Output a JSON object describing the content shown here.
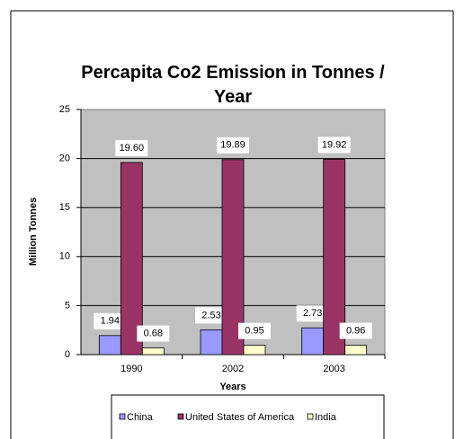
{
  "chart_data": {
    "type": "bar",
    "title": "Percapita Co2 Emission in Tonnes / Year",
    "x_label": "Years",
    "y_label": "Million Tonnes",
    "categories": [
      "1990",
      "2002",
      "2003"
    ],
    "series": [
      {
        "name": "China",
        "color": "#9999ff",
        "values": [
          1.94,
          2.53,
          2.73
        ],
        "value_labels": [
          "1.94",
          "2.53",
          "2.73"
        ]
      },
      {
        "name": "United States of America",
        "color": "#993366",
        "values": [
          19.6,
          19.89,
          19.92
        ],
        "value_labels": [
          "19.60",
          "19.89",
          "19.92"
        ]
      },
      {
        "name": "India",
        "color": "#ffffcc",
        "values": [
          0.68,
          0.95,
          0.96
        ],
        "value_labels": [
          "0.68",
          "0.95",
          "0.96"
        ]
      }
    ],
    "ylim": [
      0,
      25
    ],
    "yticks": [
      0,
      5,
      10,
      15,
      20,
      25
    ],
    "grid": true,
    "legend": "bottom"
  }
}
